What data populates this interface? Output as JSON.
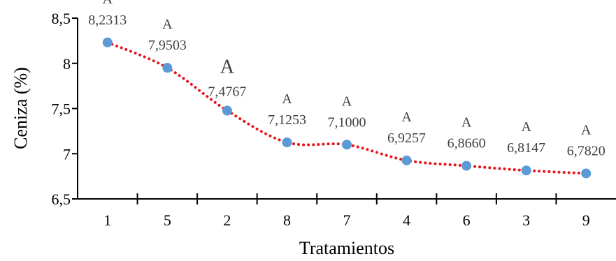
{
  "chart_data": {
    "type": "scatter",
    "title": "",
    "xlabel": "Tratamientos",
    "ylabel": "Ceniza (%)",
    "ylim": [
      6.5,
      8.5
    ],
    "yticks": [
      "6,5",
      "7",
      "7,5",
      "8",
      "8,5"
    ],
    "categories": [
      "1",
      "5",
      "2",
      "8",
      "7",
      "4",
      "6",
      "3",
      "9"
    ],
    "values": [
      8.2313,
      7.9503,
      7.4767,
      7.1253,
      7.1,
      6.9257,
      6.866,
      6.8147,
      6.782
    ],
    "value_labels": [
      "8,2313",
      "7,9503",
      "7,4767",
      "7,1253",
      "7,1000",
      "6,9257",
      "6,8660",
      "6,8147",
      "6,7820"
    ],
    "group_letters": [
      "A",
      "A",
      "A",
      "A",
      "A",
      "A",
      "A",
      "A",
      "A"
    ],
    "grid": false,
    "legend": "none",
    "trendline": {
      "style": "dotted",
      "color": "#e8141c"
    },
    "marker_color": "#5b9bd5",
    "axis_color": "#000000",
    "label_color": "#404040"
  }
}
